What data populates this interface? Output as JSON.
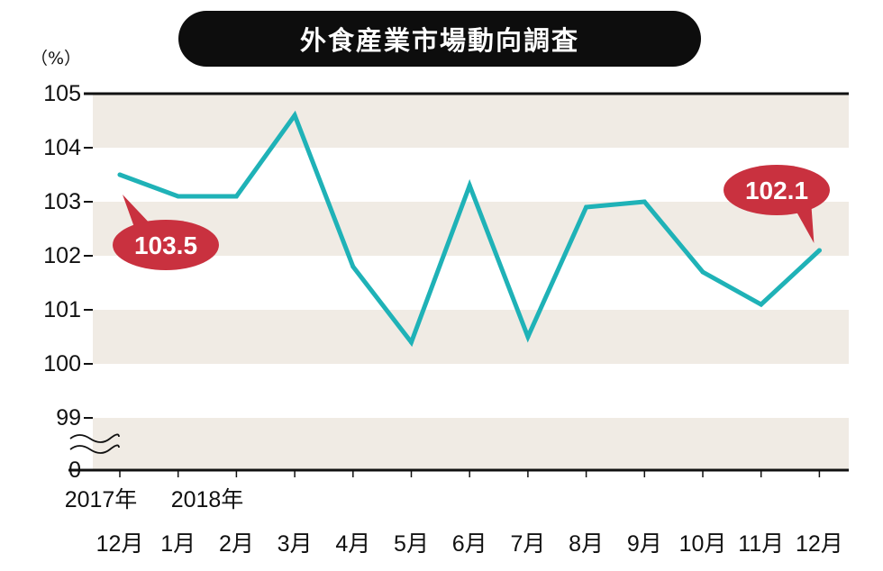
{
  "title": "外食産業市場動向調査",
  "unit": "（%）",
  "chart_data": {
    "type": "line",
    "title": "外食産業市場動向調査",
    "ylabel": "（%）",
    "xlabel": "",
    "y_ticks": [
      "105",
      "104",
      "103",
      "102",
      "101",
      "100",
      "99",
      "0"
    ],
    "ylim": [
      99,
      105
    ],
    "axis_break": true,
    "grid": "banded",
    "year_labels": [
      "2017年",
      "2018年"
    ],
    "categories": [
      "12月",
      "1月",
      "2月",
      "3月",
      "4月",
      "5月",
      "6月",
      "7月",
      "8月",
      "9月",
      "10月",
      "11月",
      "12月"
    ],
    "series": [
      {
        "values": [
          103.5,
          103.1,
          103.1,
          104.6,
          101.8,
          100.4,
          103.3,
          100.5,
          102.9,
          103.0,
          101.7,
          101.1,
          102.1
        ]
      }
    ],
    "annotations": [
      {
        "text": "103.5",
        "point_index": 0
      },
      {
        "text": "102.1",
        "point_index": 12
      }
    ],
    "colors": {
      "line": "#1fb2b7",
      "callout": "#c9313f",
      "band": "#f0ebe4"
    }
  }
}
